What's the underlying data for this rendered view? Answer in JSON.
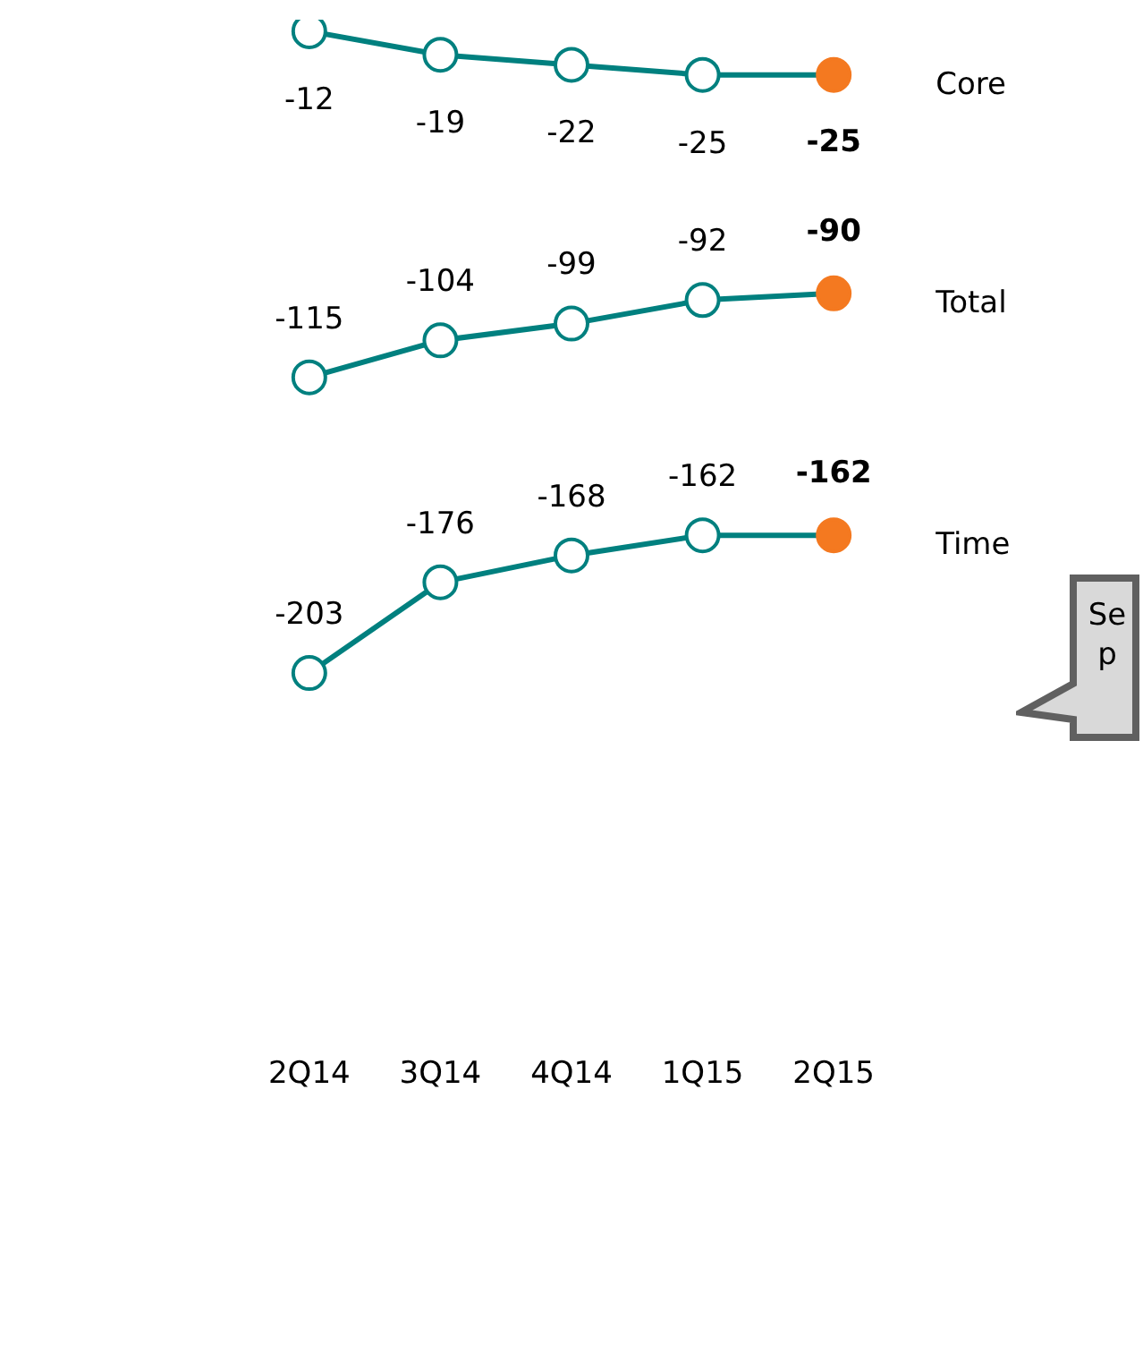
{
  "chart_data": {
    "type": "line",
    "categories": [
      "2Q14",
      "3Q14",
      "4Q14",
      "1Q15",
      "2Q15"
    ],
    "series": [
      {
        "name": "Core",
        "color": "#00807f",
        "colors": [
          "#00807f",
          "#00807f",
          "#00807f",
          "#00807f",
          "#f47920"
        ],
        "values": [
          -12,
          -19,
          -22,
          -25,
          -25
        ]
      },
      {
        "name": "Total",
        "color": "#00807f",
        "colors": [
          "#00807f",
          "#00807f",
          "#00807f",
          "#00807f",
          "#f47920"
        ],
        "values": [
          -115,
          -104,
          -99,
          -92,
          -90
        ]
      },
      {
        "name": "Time",
        "color": "#00807f",
        "colors": [
          "#00807f",
          "#00807f",
          "#00807f",
          "#00807f",
          "#f47920"
        ],
        "values": [
          -203,
          -176,
          -168,
          -162,
          -162
        ]
      }
    ],
    "data_labels": true,
    "legend": false,
    "grid": false,
    "marker": "circle",
    "line_style": "solid",
    "annotations": [
      "Se",
      "p"
    ]
  }
}
